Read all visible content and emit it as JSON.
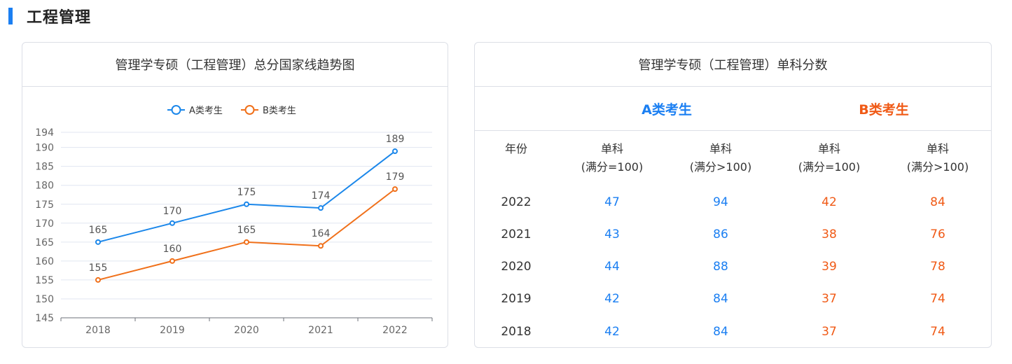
{
  "section": {
    "title": "工程管理"
  },
  "chart_card": {
    "title": "管理学专硕（工程管理）总分国家线趋势图"
  },
  "chart_data": {
    "type": "line",
    "categories": [
      "2018",
      "2019",
      "2020",
      "2021",
      "2022"
    ],
    "series": [
      {
        "name": "A类考生",
        "values": [
          165,
          170,
          175,
          174,
          189
        ],
        "color": "#1b87ea"
      },
      {
        "name": "B类考生",
        "values": [
          155,
          160,
          165,
          164,
          179
        ],
        "color": "#f0701a"
      }
    ],
    "ylim": [
      145,
      194
    ],
    "yticks": [
      "194",
      "190",
      "185",
      "180",
      "175",
      "170",
      "165",
      "160",
      "155",
      "150",
      "145"
    ],
    "legend_position": "top-center",
    "grid": true
  },
  "table_card": {
    "title": "管理学专硕（工程管理）单科分数",
    "group_a": "A类考生",
    "group_b": "B类考生",
    "headers": {
      "year": "年份",
      "cols": [
        [
          "单科",
          "(满分=100)"
        ],
        [
          "单科",
          "(满分>100)"
        ],
        [
          "单科",
          "(满分=100)"
        ],
        [
          "单科",
          "(满分>100)"
        ]
      ]
    },
    "rows": [
      {
        "year": "2022",
        "a1": "47",
        "a2": "94",
        "b1": "42",
        "b2": "84"
      },
      {
        "year": "2021",
        "a1": "43",
        "a2": "86",
        "b1": "38",
        "b2": "76"
      },
      {
        "year": "2020",
        "a1": "44",
        "a2": "88",
        "b1": "39",
        "b2": "78"
      },
      {
        "year": "2019",
        "a1": "42",
        "a2": "84",
        "b1": "37",
        "b2": "74"
      },
      {
        "year": "2018",
        "a1": "42",
        "a2": "84",
        "b1": "37",
        "b2": "74"
      }
    ]
  }
}
